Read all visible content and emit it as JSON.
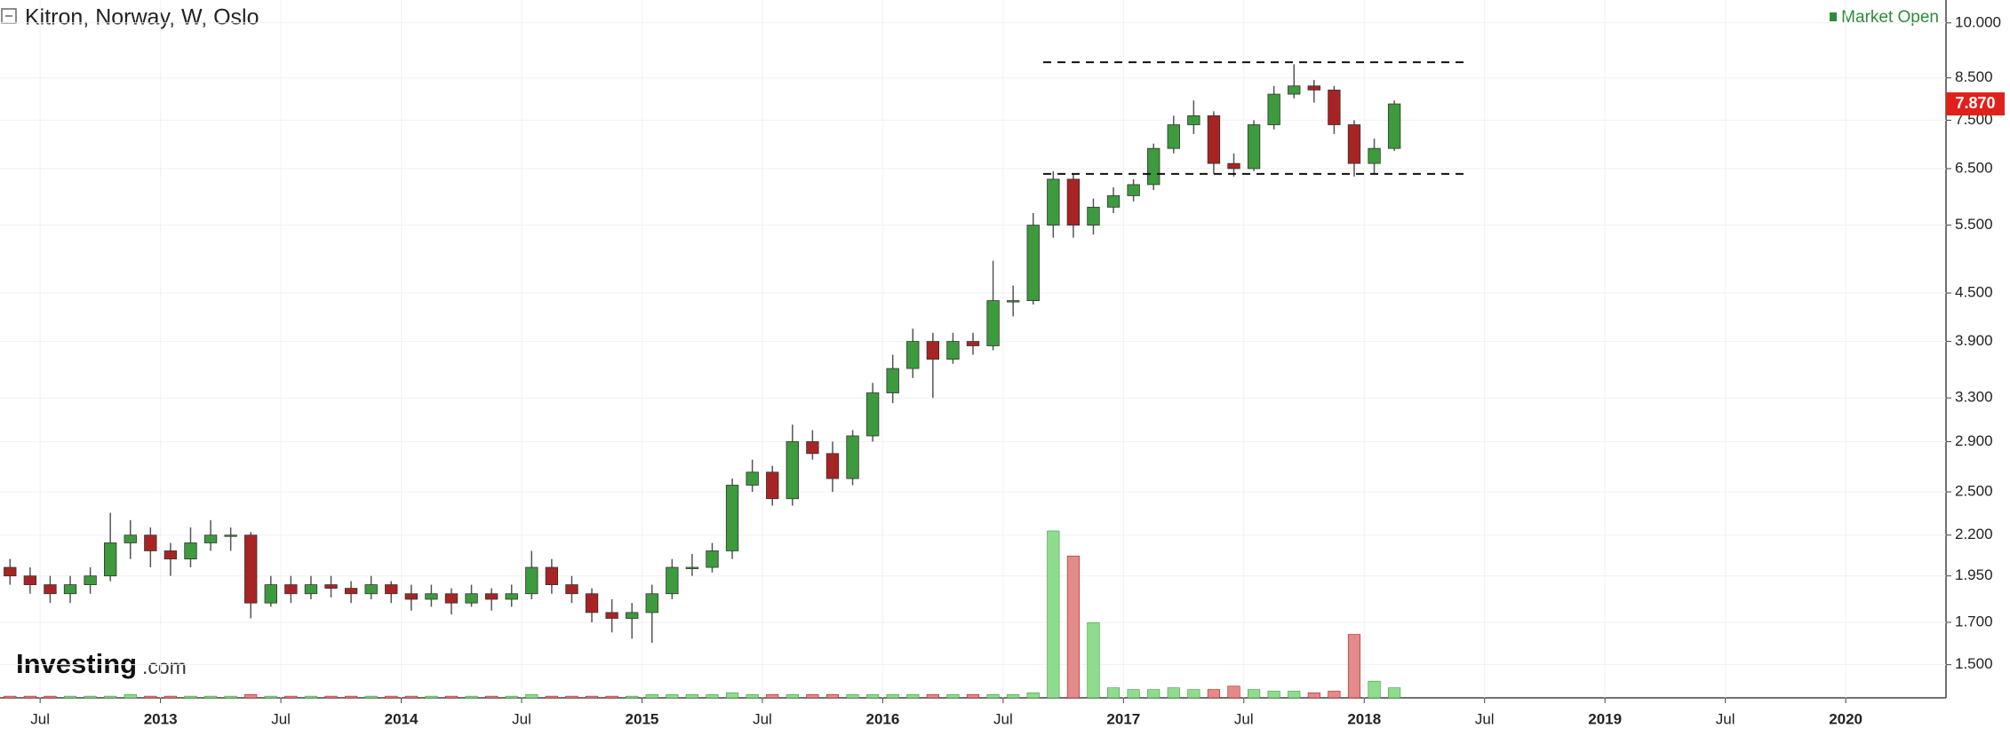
{
  "chart_data": {
    "type": "candlestick",
    "title": "Kitron, Norway, W, Oslo",
    "status": "Market Open",
    "brand": {
      "name": "Investing",
      "suffix": ".com"
    },
    "log_scale": true,
    "grid": true,
    "up_color": "#3d9a3d",
    "down_color": "#a82424",
    "volume_up_color": "#8fdc8f",
    "volume_down_color": "#e48a8a",
    "last_price": 7.87,
    "last_price_label": "7.870",
    "last_price_color": "#e0201b",
    "ylim": [
      1.36,
      10.7
    ],
    "yticks": [
      {
        "value": 1.5,
        "label": "1.500"
      },
      {
        "value": 1.7,
        "label": "1.700"
      },
      {
        "value": 1.95,
        "label": "1.950"
      },
      {
        "value": 2.2,
        "label": "2.200"
      },
      {
        "value": 2.5,
        "label": "2.500"
      },
      {
        "value": 2.9,
        "label": "2.900"
      },
      {
        "value": 3.3,
        "label": "3.300"
      },
      {
        "value": 3.9,
        "label": "3.900"
      },
      {
        "value": 4.5,
        "label": "4.500"
      },
      {
        "value": 5.5,
        "label": "5.500"
      },
      {
        "value": 6.5,
        "label": "6.500"
      },
      {
        "value": 7.5,
        "label": "7.500"
      },
      {
        "value": 8.5,
        "label": "8.500"
      },
      {
        "value": 10,
        "label": "10.000"
      }
    ],
    "xlim": [
      "2012-05",
      "2020-06"
    ],
    "xticks": [
      {
        "value": "2012-07",
        "label": "Jul"
      },
      {
        "value": "2013-01",
        "label": "2013"
      },
      {
        "value": "2013-07",
        "label": "Jul"
      },
      {
        "value": "2014-01",
        "label": "2014"
      },
      {
        "value": "2014-07",
        "label": "Jul"
      },
      {
        "value": "2015-01",
        "label": "2015"
      },
      {
        "value": "2015-07",
        "label": "Jul"
      },
      {
        "value": "2016-01",
        "label": "2016"
      },
      {
        "value": "2016-07",
        "label": "Jul"
      },
      {
        "value": "2017-01",
        "label": "2017"
      },
      {
        "value": "2017-07",
        "label": "Jul"
      },
      {
        "value": "2018-01",
        "label": "2018"
      },
      {
        "value": "2018-07",
        "label": "Jul"
      },
      {
        "value": "2019-01",
        "label": "2019"
      },
      {
        "value": "2019-07",
        "label": "Jul"
      },
      {
        "value": "2020-01",
        "label": "2020"
      }
    ],
    "levels": [
      {
        "value": 8.9,
        "from": "2016-09",
        "to": "2018-06"
      },
      {
        "value": 6.4,
        "from": "2016-09",
        "to": "2018-06"
      }
    ],
    "x": [
      "2012-05",
      "2012-06",
      "2012-07",
      "2012-08",
      "2012-09",
      "2012-10",
      "2012-11",
      "2012-12",
      "2013-01",
      "2013-02",
      "2013-03",
      "2013-04",
      "2013-05",
      "2013-06",
      "2013-07",
      "2013-08",
      "2013-09",
      "2013-10",
      "2013-11",
      "2013-12",
      "2014-01",
      "2014-02",
      "2014-03",
      "2014-04",
      "2014-05",
      "2014-06",
      "2014-07",
      "2014-08",
      "2014-09",
      "2014-10",
      "2014-11",
      "2014-12",
      "2015-01",
      "2015-02",
      "2015-03",
      "2015-04",
      "2015-05",
      "2015-06",
      "2015-07",
      "2015-08",
      "2015-09",
      "2015-10",
      "2015-11",
      "2015-12",
      "2016-01",
      "2016-02",
      "2016-03",
      "2016-04",
      "2016-05",
      "2016-06",
      "2016-07",
      "2016-08",
      "2016-09",
      "2016-10",
      "2016-11",
      "2016-12",
      "2017-01",
      "2017-02",
      "2017-03",
      "2017-04",
      "2017-05",
      "2017-06",
      "2017-07",
      "2017-08",
      "2017-09",
      "2017-10",
      "2017-11",
      "2017-12",
      "2018-01",
      "2018-02"
    ],
    "open": [
      2.0,
      1.95,
      1.9,
      1.85,
      1.9,
      1.95,
      2.15,
      2.2,
      2.1,
      2.05,
      2.15,
      2.2,
      2.2,
      1.8,
      1.9,
      1.85,
      1.9,
      1.88,
      1.85,
      1.9,
      1.85,
      1.82,
      1.85,
      1.8,
      1.85,
      1.82,
      1.85,
      2.0,
      1.9,
      1.85,
      1.75,
      1.72,
      1.75,
      1.85,
      2.0,
      2.0,
      2.1,
      2.55,
      2.65,
      2.45,
      2.9,
      2.8,
      2.6,
      2.95,
      3.35,
      3.6,
      3.9,
      3.7,
      3.9,
      3.85,
      4.4,
      4.4,
      5.5,
      6.3,
      5.5,
      5.8,
      6.0,
      6.2,
      6.9,
      7.4,
      7.6,
      6.6,
      6.5,
      7.4,
      8.1,
      8.3,
      8.2,
      7.4,
      6.6,
      6.9
    ],
    "high": [
      2.05,
      2.0,
      1.95,
      1.95,
      2.0,
      2.35,
      2.3,
      2.25,
      2.15,
      2.25,
      2.3,
      2.25,
      2.22,
      1.95,
      1.95,
      1.95,
      1.95,
      1.92,
      1.95,
      1.92,
      1.9,
      1.9,
      1.88,
      1.9,
      1.88,
      1.9,
      2.1,
      2.05,
      1.95,
      1.88,
      1.82,
      1.8,
      1.9,
      2.05,
      2.08,
      2.15,
      2.6,
      2.75,
      2.7,
      3.05,
      3.0,
      2.9,
      3.0,
      3.45,
      3.75,
      4.05,
      4.0,
      4.0,
      4.0,
      4.95,
      4.6,
      5.7,
      6.45,
      6.4,
      5.95,
      6.15,
      6.3,
      7.0,
      7.6,
      7.95,
      7.7,
      6.8,
      7.5,
      8.3,
      8.85,
      8.45,
      8.3,
      7.5,
      7.1,
      7.95
    ],
    "low": [
      1.9,
      1.85,
      1.8,
      1.8,
      1.85,
      1.92,
      2.05,
      2.0,
      1.95,
      2.0,
      2.1,
      2.1,
      1.72,
      1.78,
      1.8,
      1.82,
      1.83,
      1.8,
      1.82,
      1.8,
      1.76,
      1.78,
      1.74,
      1.78,
      1.76,
      1.78,
      1.82,
      1.85,
      1.8,
      1.7,
      1.65,
      1.62,
      1.6,
      1.82,
      1.95,
      1.97,
      2.05,
      2.5,
      2.4,
      2.4,
      2.75,
      2.5,
      2.55,
      2.9,
      3.25,
      3.5,
      3.3,
      3.65,
      3.75,
      3.8,
      4.2,
      4.35,
      5.3,
      5.3,
      5.35,
      5.7,
      5.9,
      6.1,
      6.8,
      7.2,
      6.4,
      6.35,
      6.45,
      7.3,
      8.0,
      7.9,
      7.2,
      6.35,
      6.4,
      6.85
    ],
    "close": [
      1.95,
      1.9,
      1.85,
      1.9,
      1.95,
      2.15,
      2.2,
      2.1,
      2.05,
      2.15,
      2.2,
      2.2,
      1.8,
      1.9,
      1.85,
      1.9,
      1.88,
      1.85,
      1.9,
      1.85,
      1.82,
      1.85,
      1.8,
      1.85,
      1.82,
      1.85,
      2.0,
      1.9,
      1.85,
      1.75,
      1.72,
      1.75,
      1.85,
      2.0,
      2.0,
      2.1,
      2.55,
      2.65,
      2.45,
      2.9,
      2.8,
      2.6,
      2.95,
      3.35,
      3.6,
      3.9,
      3.7,
      3.9,
      3.85,
      4.4,
      4.4,
      5.5,
      6.3,
      5.5,
      5.8,
      6.0,
      6.2,
      6.9,
      7.4,
      7.6,
      6.6,
      6.5,
      7.4,
      8.1,
      8.3,
      8.2,
      7.4,
      6.6,
      6.9,
      7.87
    ],
    "volume": [
      1,
      1,
      1,
      1,
      1,
      1,
      2,
      1,
      1,
      1,
      1,
      1,
      2,
      1,
      1,
      1,
      1,
      1,
      1,
      1,
      1,
      1,
      1,
      1,
      1,
      1,
      2,
      1,
      1,
      1,
      1,
      1,
      2,
      2,
      2,
      2,
      3,
      2,
      2,
      2,
      2,
      2,
      2,
      2,
      2,
      2,
      2,
      2,
      2,
      2,
      2,
      3,
      100,
      85,
      45,
      6,
      5,
      5,
      6,
      5,
      5,
      7,
      5,
      4,
      4,
      3,
      4,
      38,
      10,
      6
    ]
  }
}
